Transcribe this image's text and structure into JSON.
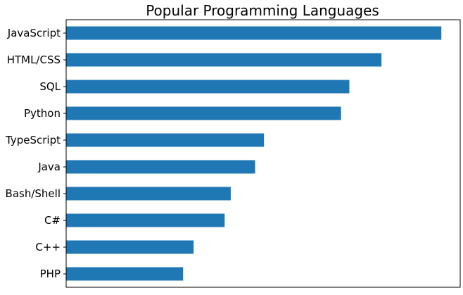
{
  "chart_data": {
    "type": "bar",
    "orientation": "horizontal",
    "title": "Popular Programming Languages",
    "xlabel": "",
    "ylabel": "",
    "categories": [
      "JavaScript",
      "HTML/CSS",
      "SQL",
      "Python",
      "TypeScript",
      "Java",
      "Bash/Shell",
      "C#",
      "C++",
      "PHP"
    ],
    "values": [
      67.7,
      56.9,
      51.1,
      49.6,
      35.7,
      34.1,
      29.7,
      28.6,
      23.0,
      21.1
    ],
    "xlim": [
      0,
      71.1
    ],
    "x_ticks_visible": false,
    "grid": false,
    "legend": "none",
    "bar_color": "#1f77b4"
  }
}
